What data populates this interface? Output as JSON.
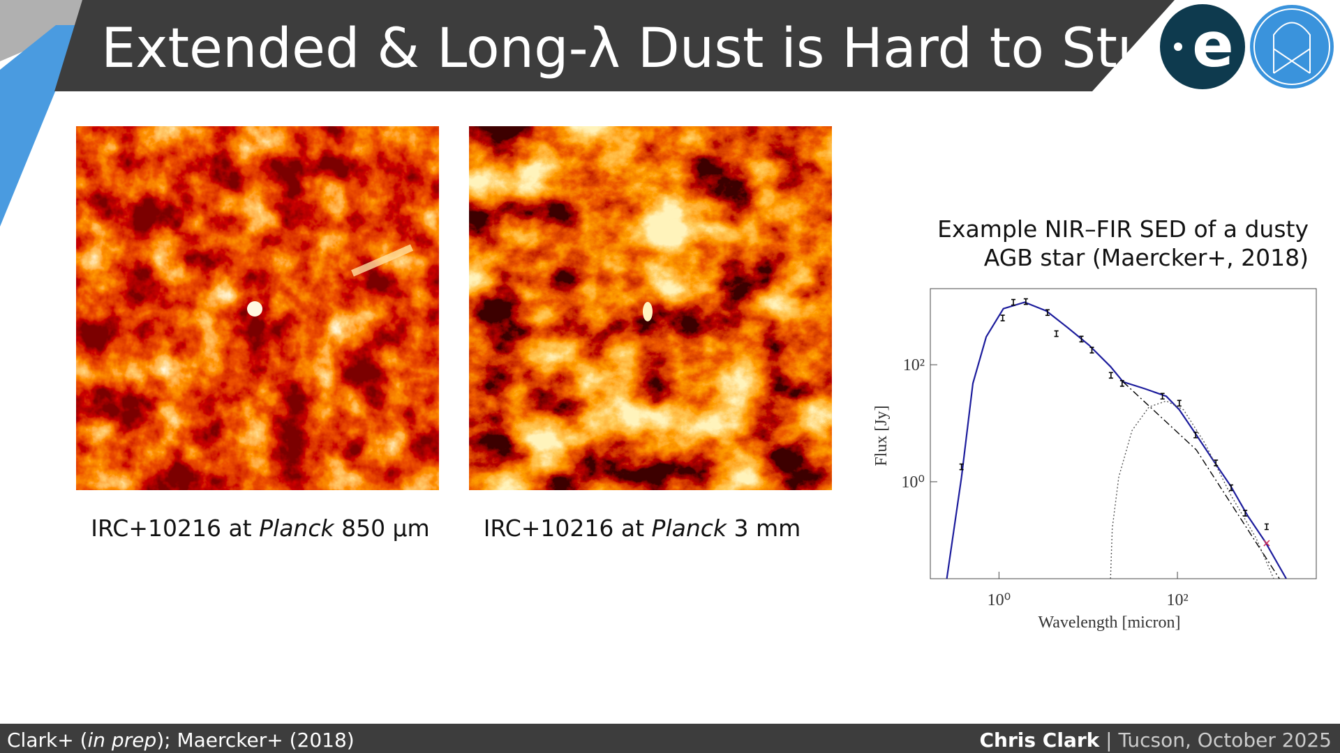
{
  "header": {
    "title": "Extended & Long-λ Dust is Hard to Study"
  },
  "images": [
    {
      "caption": [
        "IRC+10216 at ",
        "Planck",
        " 850 µm"
      ]
    },
    {
      "caption": [
        "IRC+10216 at ",
        "Planck",
        " 3 mm"
      ]
    }
  ],
  "chart_data": {
    "type": "scatter",
    "title": [
      "Example NIR–FIR SED of a dusty",
      "AGB star (Maercker+, 2018)"
    ],
    "xlabel": "Wavelength [micron]",
    "ylabel": "Flux [Jy]",
    "xscale": "log",
    "yscale": "log",
    "xlim": [
      0.17,
      3600
    ],
    "ylim": [
      0.022,
      2000
    ],
    "xticks": [
      {
        "value": 1,
        "label": "10⁰"
      },
      {
        "value": 100,
        "label": "10²"
      }
    ],
    "yticks": [
      {
        "value": 1,
        "label": "10⁰"
      },
      {
        "value": 100,
        "label": "10²"
      }
    ],
    "series": [
      {
        "color": "#000000",
        "marker": "bar",
        "x": [
          0.38,
          1.1,
          1.45,
          2.0,
          3.5,
          4.4,
          8.4,
          11,
          18,
          24,
          68,
          105,
          160,
          270,
          400,
          575,
          1000
        ],
        "values": [
          1.8,
          630,
          1170,
          1200,
          780,
          340,
          275,
          178,
          66,
          48,
          29,
          22,
          6.3,
          2.1,
          0.79,
          0.29,
          0.17
        ]
      },
      {
        "color": "#d0305a",
        "marker": "x",
        "x": [
          1000
        ],
        "values": [
          0.089
        ]
      }
    ],
    "curves": [
      {
        "color": "#1c1c9c",
        "style": "solid",
        "x": [
          0.26,
          0.38,
          0.51,
          0.72,
          1.12,
          1.94,
          3.4,
          5.9,
          10.2,
          17.8,
          24.6,
          43,
          75,
          105,
          163,
          253,
          395,
          615,
          960,
          1660
        ],
        "values": [
          0.022,
          1.2,
          48,
          300,
          910,
          1170,
          830,
          430,
          217,
          93,
          51,
          39,
          29,
          17,
          6.3,
          2.3,
          0.85,
          0.26,
          0.095,
          0.022
        ]
      },
      {
        "color": "#000000",
        "style": "dashdot",
        "x": [
          24.6,
          163,
          1390
        ],
        "values": [
          51,
          3.5,
          0.022
        ]
      },
      {
        "color": "#555555",
        "style": "dotted",
        "x": [
          17.8,
          18.6,
          22,
          31,
          48,
          75,
          117,
          204,
          395,
          760,
          1200
        ],
        "values": [
          0.022,
          0.16,
          1.2,
          7.5,
          19,
          24,
          17,
          4.5,
          0.6,
          0.11,
          0.022
        ]
      }
    ]
  },
  "footer": {
    "left": [
      "Clark+ (",
      "in prep",
      "); Maercker+ (2018)"
    ],
    "right": [
      "Chris Clark",
      " | Tucson, October 2025"
    ]
  }
}
